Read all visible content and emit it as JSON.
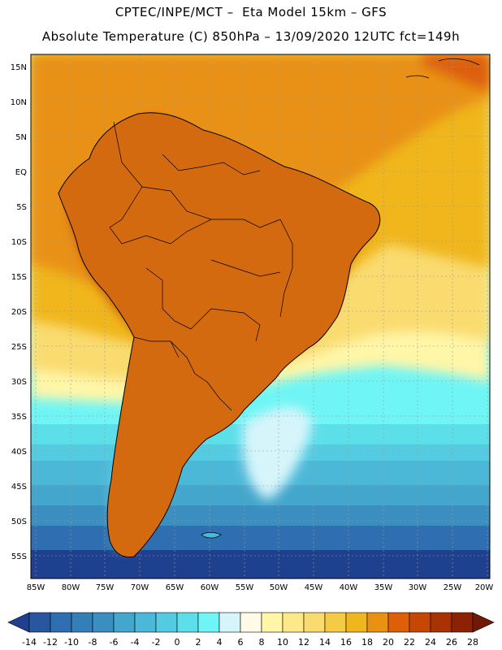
{
  "header": {
    "line1": "CPTEC/INPE/MCT –  Eta Model 15km – GFS",
    "line2": "Absolute Temperature (C) 850hPa – 13/09/2020 12UTC fct=149h"
  },
  "map": {
    "lat_labels": [
      "15N",
      "10N",
      "5N",
      "EQ",
      "5S",
      "10S",
      "15S",
      "20S",
      "25S",
      "30S",
      "35S",
      "40S",
      "45S",
      "50S",
      "55S"
    ],
    "lon_labels": [
      "85W",
      "80W",
      "75W",
      "70W",
      "65W",
      "60W",
      "55W",
      "50W",
      "45W",
      "40W",
      "35W",
      "30W",
      "25W",
      "20W"
    ],
    "lat_range": [
      -58,
      17
    ],
    "lon_range": [
      -86,
      -20
    ]
  },
  "colorbar": {
    "labels": [
      "-14",
      "-12",
      "-10",
      "-8",
      "-6",
      "-4",
      "-2",
      "0",
      "2",
      "4",
      "6",
      "8",
      "10",
      "12",
      "14",
      "16",
      "18",
      "20",
      "22",
      "24",
      "26",
      "28"
    ],
    "colors": [
      "#1f3f8f",
      "#2857a0",
      "#2f6eb0",
      "#357fb8",
      "#3b8fc0",
      "#43a6cc",
      "#4cb8d8",
      "#55cbe2",
      "#5ddfe9",
      "#6ff5f5",
      "#d6f5fb",
      "#fffbe6",
      "#fff6a8",
      "#fde98a",
      "#f9db6f",
      "#f5cb45",
      "#f0b61e",
      "#e99113",
      "#dd5f08",
      "#c64704",
      "#a93203",
      "#8c2203",
      "#6e1a05"
    ]
  }
}
